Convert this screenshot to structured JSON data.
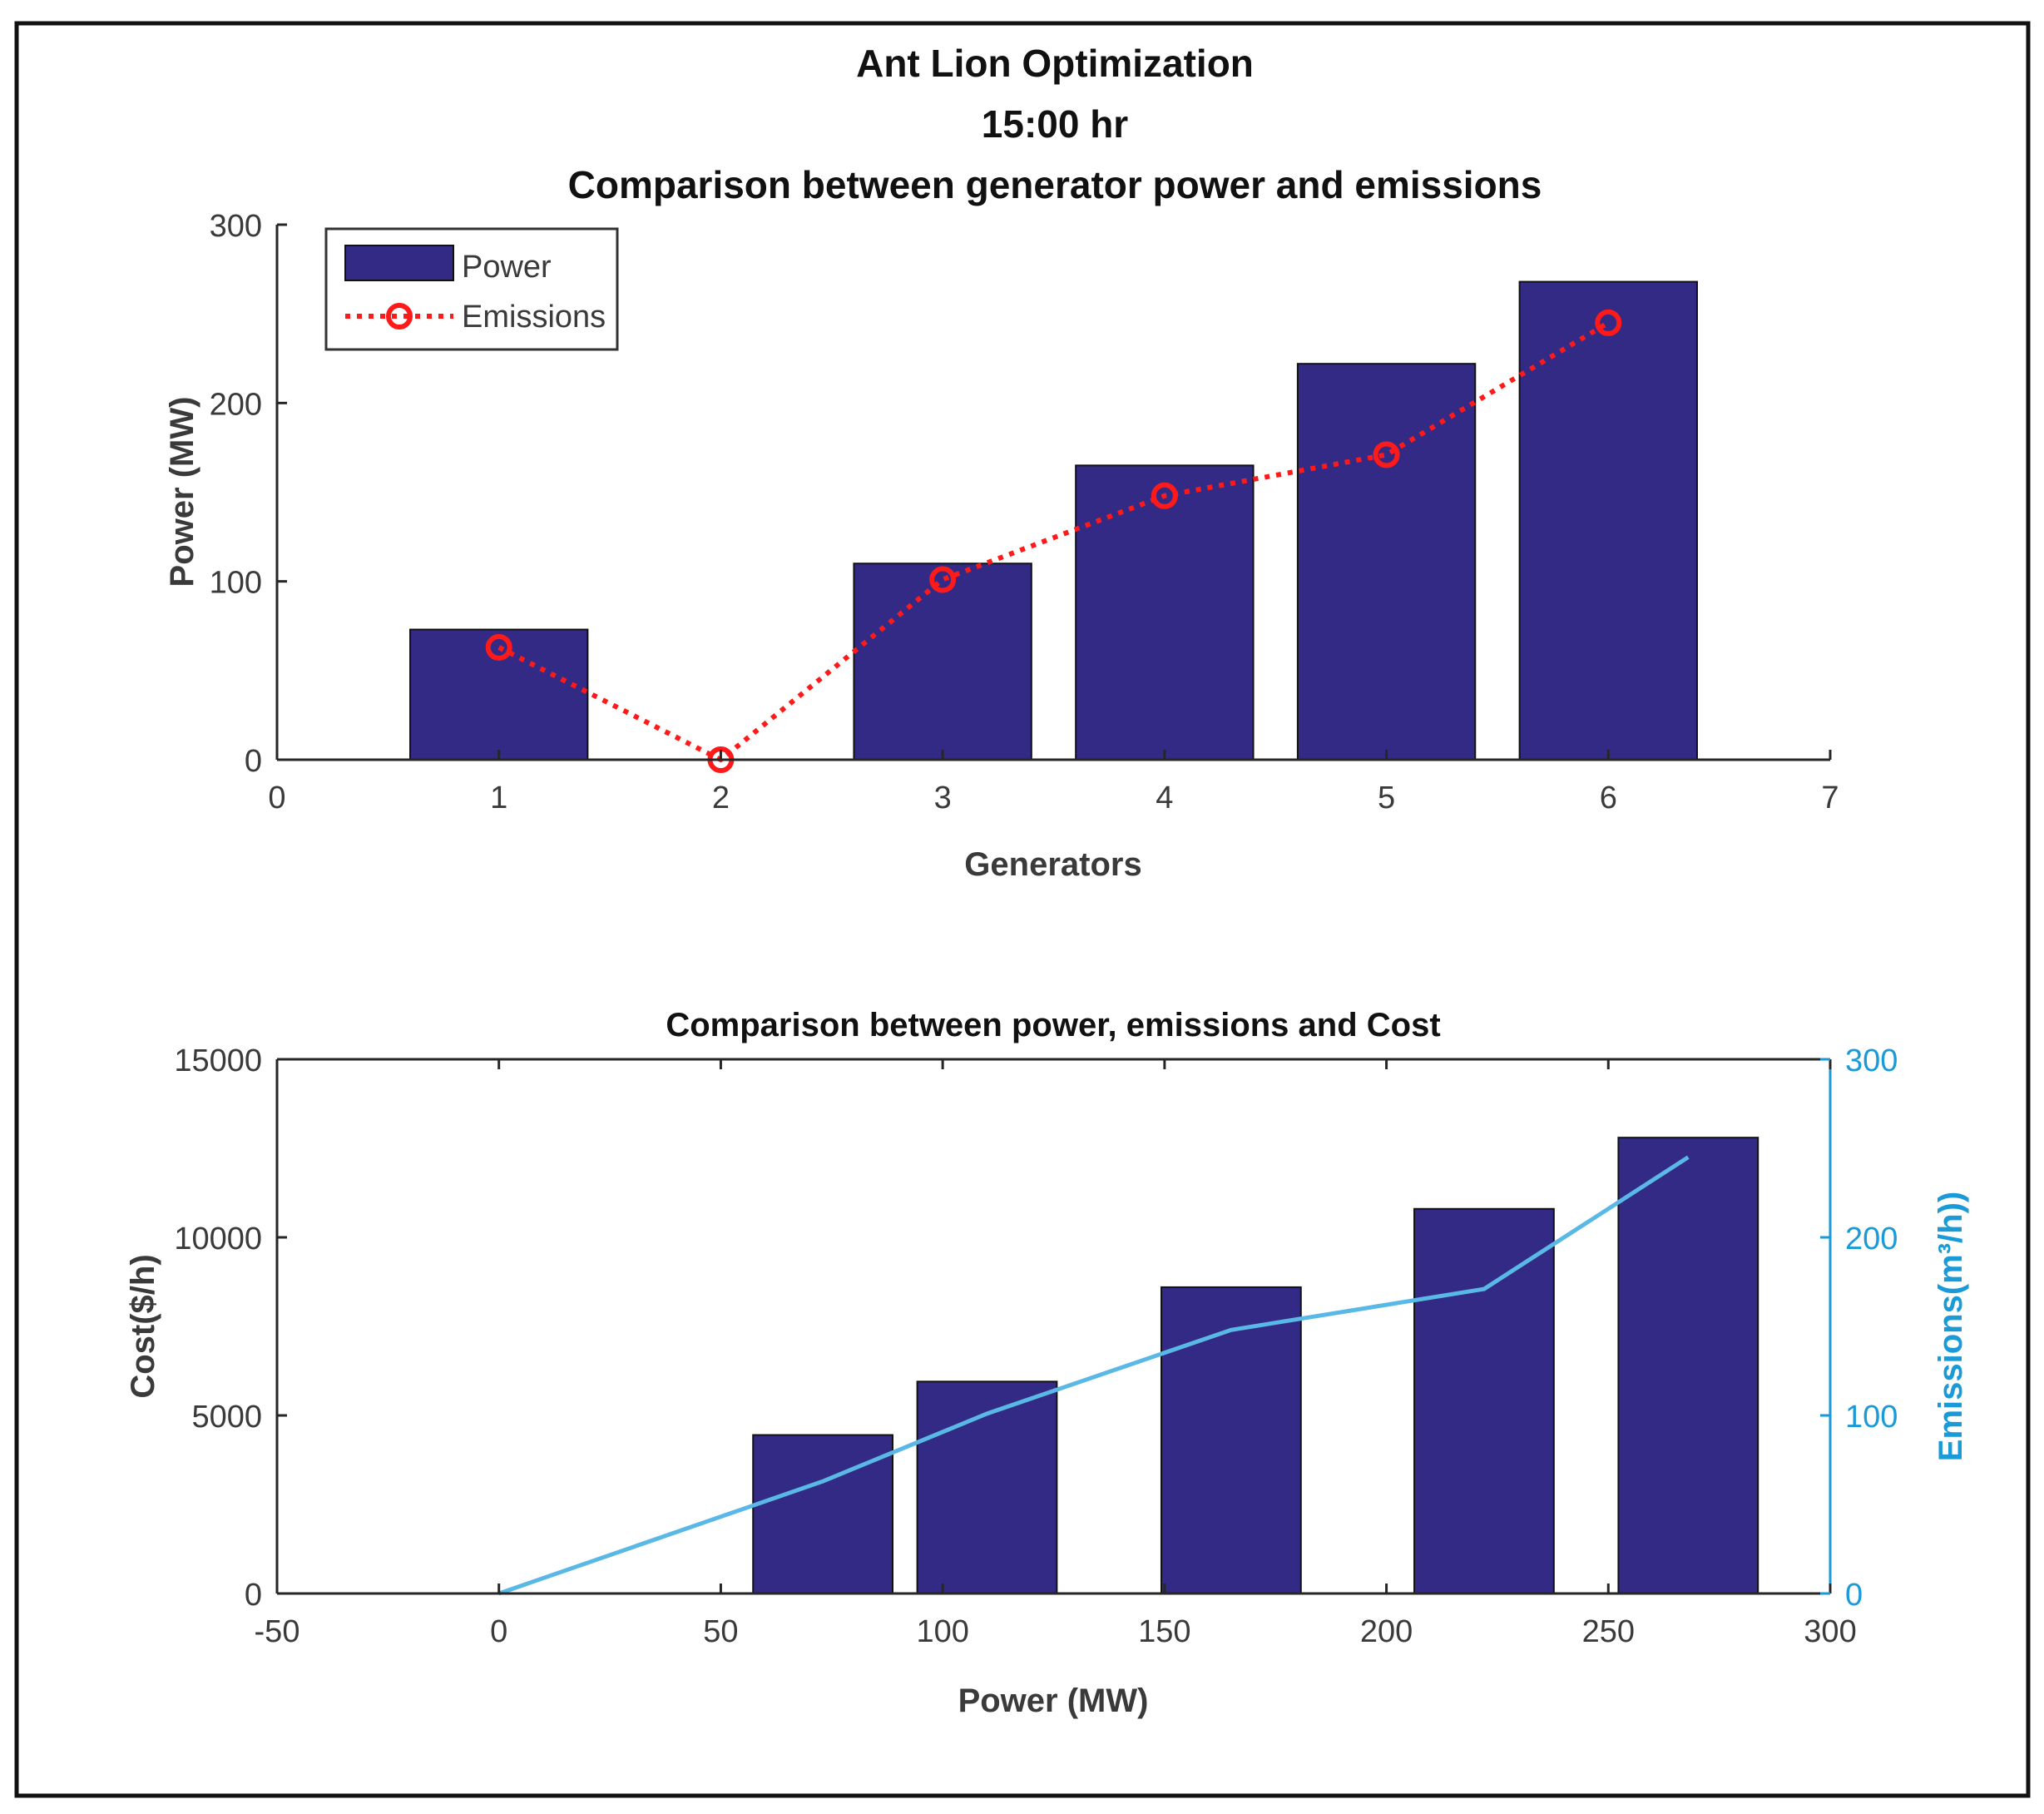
{
  "figure": {
    "title_lines": [
      "Ant Lion Optimization",
      "15:00 hr",
      "Comparison between generator power and emissions"
    ]
  },
  "colors": {
    "bar": "#332a85",
    "emissions_line_top": "#ff1a1a",
    "emissions_line_bottom": "#5ab8e6",
    "right_axis": "#1a9ad6",
    "axis": "#262626"
  },
  "chart_data": [
    {
      "type": "bar",
      "xlabel": "Generators",
      "ylabel": "Power (MW)",
      "xlim": [
        0,
        7
      ],
      "ylim": [
        0,
        300
      ],
      "xticks": [
        "0",
        "1",
        "2",
        "3",
        "4",
        "5",
        "6",
        "7"
      ],
      "yticks": [
        "0",
        "100",
        "200",
        "300"
      ],
      "legend_position": "top-left",
      "categories": [
        1,
        2,
        3,
        4,
        5,
        6
      ],
      "series": [
        {
          "name": "Power",
          "type": "bar",
          "values": [
            73,
            0,
            110,
            165,
            222,
            268
          ]
        },
        {
          "name": "Emissions",
          "type": "line",
          "style": "dotted",
          "marker": "circle",
          "values": [
            63,
            0,
            101,
            148,
            171,
            245
          ]
        }
      ]
    },
    {
      "type": "bar",
      "title": "Comparison between power, emissions and Cost",
      "xlabel": "Power (MW)",
      "ylabel": "Cost($/h)",
      "y2label": "Emissions(m³/h))",
      "xlim": [
        -50,
        300
      ],
      "ylim": [
        0,
        15000
      ],
      "y2lim": [
        0,
        300
      ],
      "xticks": [
        "-50",
        "0",
        "50",
        "100",
        "150",
        "200",
        "250",
        "300"
      ],
      "yticks": [
        "0",
        "5000",
        "10000",
        "15000"
      ],
      "y2ticks": [
        "0",
        "100",
        "200",
        "300"
      ],
      "bars": {
        "x": [
          73,
          110,
          165,
          222,
          268
        ],
        "values": [
          4450,
          5950,
          8600,
          10800,
          12800
        ]
      },
      "emissions_line": {
        "x": [
          0,
          73,
          110,
          165,
          222,
          268
        ],
        "y": [
          0,
          63,
          101,
          148,
          171,
          245
        ]
      }
    }
  ]
}
